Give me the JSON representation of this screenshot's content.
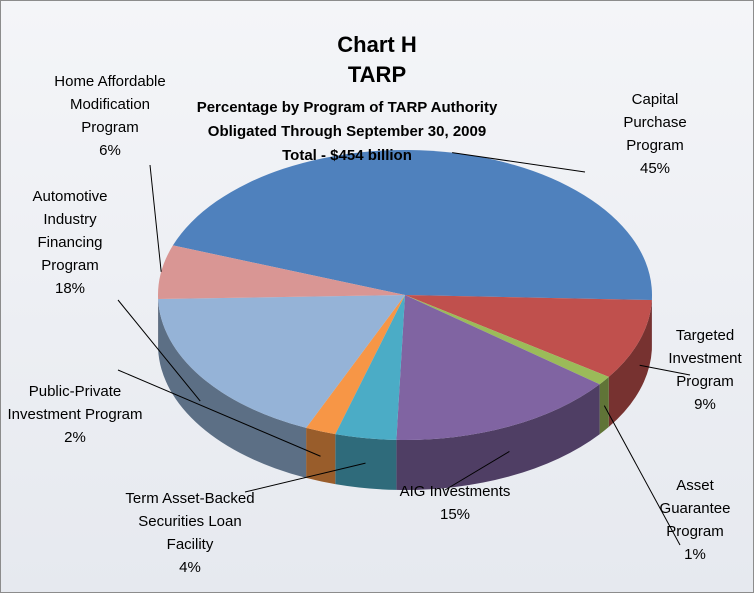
{
  "chart_data": {
    "type": "pie3d",
    "title": [
      "Chart H",
      "TARP"
    ],
    "subtitle": [
      "Percentage by Program of TARP Authority",
      "Obligated  Through September 30, 2009",
      "Total - $454 billion"
    ],
    "categories": [
      "Capital Purchase Program",
      "Targeted Investment Program",
      "Asset Guarantee Program",
      "AIG Investments",
      "Term Asset-Backed Securities Loan Facility",
      "Public-Private Investment Program",
      "Automotive Industry Financing Program",
      "Home Affordable Modification Program"
    ],
    "values": [
      45,
      9,
      1,
      15,
      4,
      2,
      18,
      6
    ],
    "value_labels": [
      "45%",
      "9%",
      "1%",
      "15%",
      "4%",
      "2%",
      "18%",
      "6%"
    ],
    "colors": [
      "#4f81bd",
      "#c0504d",
      "#9bbb59",
      "#8064a2",
      "#4bacc6",
      "#f79646",
      "#95b3d7",
      "#d99694"
    ]
  }
}
